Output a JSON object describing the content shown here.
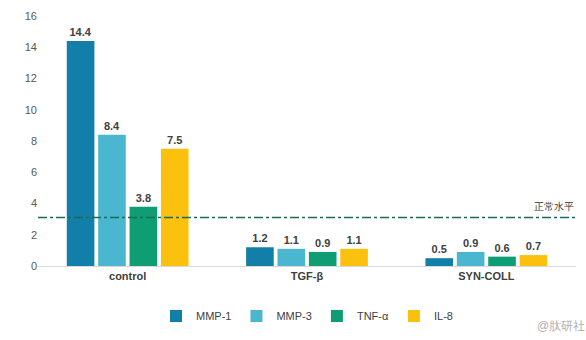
{
  "chart_data": {
    "type": "bar",
    "categories": [
      "control",
      "TGF-β",
      "SYN-COLL"
    ],
    "series": [
      {
        "name": "MMP-1",
        "color": "#127fa8",
        "values": [
          14.4,
          1.2,
          0.5
        ]
      },
      {
        "name": "MMP-3",
        "color": "#4ab6d0",
        "values": [
          8.4,
          1.1,
          0.9
        ]
      },
      {
        "name": "TNF-α",
        "color": "#0f9d74",
        "values": [
          3.8,
          0.9,
          0.6
        ]
      },
      {
        "name": "IL-8",
        "color": "#fcc10f",
        "values": [
          7.5,
          1.1,
          0.7
        ]
      }
    ],
    "ylim": [
      0,
      16
    ],
    "yticks": [
      0,
      2,
      4,
      6,
      8,
      10,
      12,
      14,
      16
    ],
    "grid": false,
    "legend": "bottom",
    "data_labels": true,
    "reference_line": {
      "value": 3.1,
      "label": "正常水平",
      "line_style": "dashdot",
      "color": "#1a6b5a"
    },
    "annotations": [
      "@肽研社"
    ]
  }
}
